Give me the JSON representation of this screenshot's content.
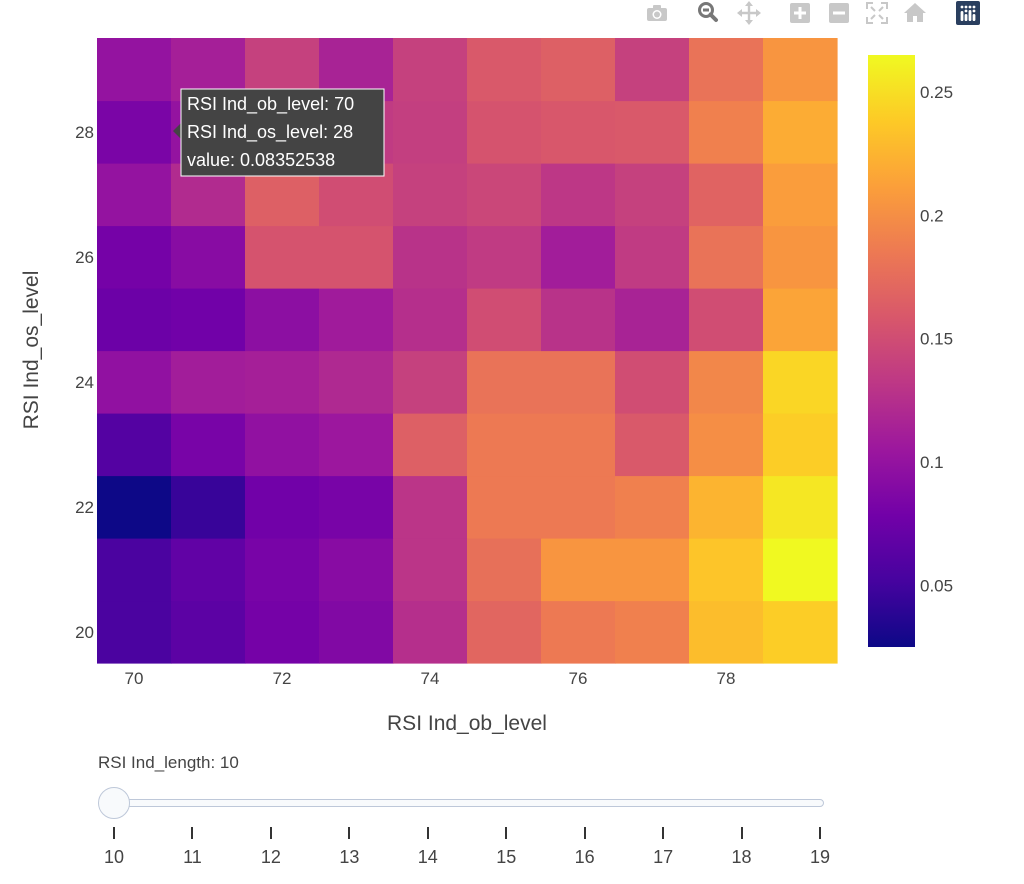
{
  "chart_data": {
    "type": "heatmap",
    "x": [
      70,
      71,
      72,
      73,
      74,
      75,
      76,
      77,
      78,
      79
    ],
    "y": [
      20,
      21,
      22,
      23,
      24,
      25,
      26,
      27,
      28,
      29
    ],
    "z": [
      [
        0.055,
        0.065,
        0.08,
        0.088,
        0.125,
        0.17,
        0.185,
        0.19,
        0.23,
        0.24
      ],
      [
        0.055,
        0.068,
        0.082,
        0.092,
        0.13,
        0.178,
        0.205,
        0.205,
        0.235,
        0.265
      ],
      [
        0.025,
        0.045,
        0.078,
        0.082,
        0.13,
        0.185,
        0.185,
        0.19,
        0.225,
        0.255
      ],
      [
        0.06,
        0.082,
        0.098,
        0.105,
        0.165,
        0.185,
        0.185,
        0.16,
        0.2,
        0.24
      ],
      [
        0.098,
        0.11,
        0.112,
        0.12,
        0.14,
        0.18,
        0.18,
        0.15,
        0.195,
        0.245
      ],
      [
        0.075,
        0.078,
        0.095,
        0.108,
        0.125,
        0.15,
        0.128,
        0.115,
        0.15,
        0.215
      ],
      [
        0.08,
        0.092,
        0.155,
        0.155,
        0.128,
        0.135,
        0.11,
        0.135,
        0.18,
        0.205
      ],
      [
        0.1,
        0.122,
        0.165,
        0.15,
        0.14,
        0.145,
        0.132,
        0.14,
        0.168,
        0.21
      ],
      [
        0.0835,
        0.1,
        0.145,
        0.135,
        0.138,
        0.155,
        0.158,
        0.16,
        0.19,
        0.22
      ],
      [
        0.1,
        0.112,
        0.14,
        0.115,
        0.14,
        0.16,
        0.165,
        0.14,
        0.18,
        0.205
      ]
    ],
    "xlabel": "RSI Ind_ob_level",
    "ylabel": "RSI Ind_os_level",
    "xticks": [
      70,
      72,
      74,
      76,
      78
    ],
    "yticks": [
      20,
      22,
      24,
      26,
      28
    ],
    "colorscale": "Plasma",
    "zrange": [
      0.025,
      0.265
    ],
    "colorbar_ticks": [
      "0.05",
      "0.1",
      "0.15",
      "0.2",
      "0.25"
    ],
    "colorbar_tick_values": [
      0.05,
      0.1,
      0.15,
      0.2,
      0.25
    ]
  },
  "tooltip": {
    "lines": [
      "RSI Ind_ob_level: 70",
      "RSI Ind_os_level: 28",
      "value: 0.08352538"
    ]
  },
  "slider": {
    "label": "RSI Ind_length: 10",
    "steps": [
      "10",
      "11",
      "12",
      "13",
      "14",
      "15",
      "16",
      "17",
      "18",
      "19"
    ],
    "active_index": 0
  },
  "modebar": {
    "icons": [
      "camera-icon",
      "zoom-icon",
      "pan-icon",
      "zoom-in-icon",
      "zoom-out-icon",
      "autoscale-icon",
      "reset-axes-icon",
      "plotly-logo-icon"
    ],
    "logo_color": "#2a3f5f"
  }
}
